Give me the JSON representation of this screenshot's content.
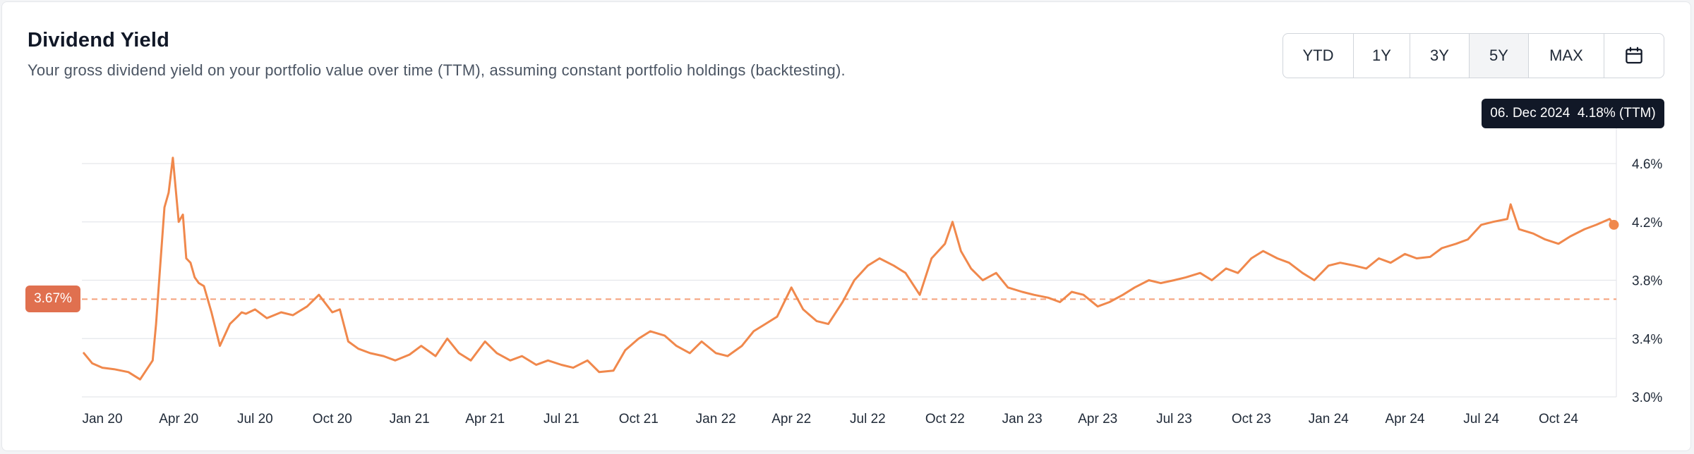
{
  "header": {
    "title": "Dividend Yield",
    "subtitle": "Your gross dividend yield on your portfolio value over time (TTM), assuming constant portfolio holdings (backtesting)."
  },
  "range_buttons": [
    {
      "label": "YTD",
      "active": false
    },
    {
      "label": "1Y",
      "active": false
    },
    {
      "label": "3Y",
      "active": false
    },
    {
      "label": "5Y",
      "active": true
    },
    {
      "label": "MAX",
      "active": false
    }
  ],
  "calendar_icon": "calendar-icon",
  "tooltip": {
    "date": "06. Dec 2024",
    "value": "4.18% (TTM)"
  },
  "average_badge": "3.67%",
  "colors": {
    "line": "#f0884c",
    "average_line": "#f5a07a",
    "badge": "#e0704f",
    "tooltip_bg": "#111827",
    "grid": "#e5e7eb"
  },
  "chart_data": {
    "type": "line",
    "title": "Dividend Yield",
    "xlabel": "",
    "ylabel": "",
    "ylim": [
      3.0,
      4.8
    ],
    "y_ticks": [
      "3.0%",
      "3.4%",
      "3.8%",
      "4.2%",
      "4.6%"
    ],
    "y_tick_values": [
      3.0,
      3.4,
      3.8,
      4.2,
      4.6
    ],
    "x_ticks": [
      "Jan 20",
      "Apr 20",
      "Jul 20",
      "Oct 20",
      "Jan 21",
      "Apr 21",
      "Jul 21",
      "Oct 21",
      "Jan 22",
      "Apr 22",
      "Jul 22",
      "Oct 22",
      "Jan 23",
      "Apr 23",
      "Jul 23",
      "Oct 23",
      "Jan 24",
      "Apr 24",
      "Jul 24",
      "Oct 24"
    ],
    "x_tick_dates": [
      "2020-01-01",
      "2020-04-01",
      "2020-07-01",
      "2020-10-01",
      "2021-01-01",
      "2021-04-01",
      "2021-07-01",
      "2021-10-01",
      "2022-01-01",
      "2022-04-01",
      "2022-07-01",
      "2022-10-01",
      "2023-01-01",
      "2023-04-01",
      "2023-07-01",
      "2023-10-01",
      "2024-01-01",
      "2024-04-01",
      "2024-07-01",
      "2024-10-01"
    ],
    "grid": true,
    "average": 3.67,
    "series": [
      {
        "name": "",
        "x": [
          "2019-12-10",
          "2019-12-20",
          "2020-01-01",
          "2020-01-15",
          "2020-02-01",
          "2020-02-15",
          "2020-03-01",
          "2020-03-05",
          "2020-03-10",
          "2020-03-15",
          "2020-03-20",
          "2020-03-25",
          "2020-04-01",
          "2020-04-06",
          "2020-04-10",
          "2020-04-15",
          "2020-04-20",
          "2020-04-25",
          "2020-05-01",
          "2020-05-10",
          "2020-05-20",
          "2020-06-01",
          "2020-06-10",
          "2020-06-15",
          "2020-06-20",
          "2020-07-01",
          "2020-07-15",
          "2020-08-01",
          "2020-08-15",
          "2020-09-01",
          "2020-09-15",
          "2020-10-01",
          "2020-10-10",
          "2020-10-20",
          "2020-11-01",
          "2020-11-15",
          "2020-12-01",
          "2020-12-15",
          "2021-01-01",
          "2021-01-15",
          "2021-02-01",
          "2021-02-15",
          "2021-03-01",
          "2021-03-15",
          "2021-04-01",
          "2021-04-15",
          "2021-05-01",
          "2021-05-15",
          "2021-06-01",
          "2021-06-15",
          "2021-07-01",
          "2021-07-15",
          "2021-08-01",
          "2021-08-15",
          "2021-09-01",
          "2021-09-15",
          "2021-10-01",
          "2021-10-15",
          "2021-11-01",
          "2021-11-15",
          "2021-12-01",
          "2021-12-15",
          "2022-01-01",
          "2022-01-15",
          "2022-02-01",
          "2022-02-15",
          "2022-03-01",
          "2022-03-15",
          "2022-04-01",
          "2022-04-15",
          "2022-05-01",
          "2022-05-15",
          "2022-06-01",
          "2022-06-15",
          "2022-07-01",
          "2022-07-15",
          "2022-08-01",
          "2022-08-15",
          "2022-09-01",
          "2022-09-15",
          "2022-10-01",
          "2022-10-10",
          "2022-10-20",
          "2022-11-01",
          "2022-11-15",
          "2022-12-01",
          "2022-12-15",
          "2023-01-01",
          "2023-01-15",
          "2023-02-01",
          "2023-02-15",
          "2023-03-01",
          "2023-03-15",
          "2023-04-01",
          "2023-04-15",
          "2023-05-01",
          "2023-05-15",
          "2023-06-01",
          "2023-06-15",
          "2023-07-01",
          "2023-07-15",
          "2023-08-01",
          "2023-08-15",
          "2023-09-01",
          "2023-09-15",
          "2023-10-01",
          "2023-10-15",
          "2023-11-01",
          "2023-11-15",
          "2023-12-01",
          "2023-12-15",
          "2024-01-01",
          "2024-01-15",
          "2024-02-01",
          "2024-02-15",
          "2024-03-01",
          "2024-03-15",
          "2024-04-01",
          "2024-04-15",
          "2024-05-01",
          "2024-05-15",
          "2024-06-01",
          "2024-06-15",
          "2024-07-01",
          "2024-07-15",
          "2024-08-01",
          "2024-08-05",
          "2024-08-15",
          "2024-09-01",
          "2024-09-15",
          "2024-10-01",
          "2024-10-15",
          "2024-11-01",
          "2024-11-15",
          "2024-12-01",
          "2024-12-06"
        ],
        "values": [
          3.3,
          3.23,
          3.2,
          3.19,
          3.17,
          3.12,
          3.25,
          3.5,
          3.9,
          4.3,
          4.4,
          4.64,
          4.2,
          4.25,
          3.95,
          3.92,
          3.82,
          3.78,
          3.76,
          3.58,
          3.35,
          3.5,
          3.55,
          3.58,
          3.57,
          3.6,
          3.54,
          3.58,
          3.56,
          3.62,
          3.7,
          3.58,
          3.6,
          3.38,
          3.33,
          3.3,
          3.28,
          3.25,
          3.29,
          3.35,
          3.28,
          3.4,
          3.3,
          3.25,
          3.38,
          3.3,
          3.25,
          3.28,
          3.22,
          3.25,
          3.22,
          3.2,
          3.25,
          3.17,
          3.18,
          3.32,
          3.4,
          3.45,
          3.42,
          3.35,
          3.3,
          3.38,
          3.3,
          3.28,
          3.35,
          3.45,
          3.5,
          3.55,
          3.75,
          3.6,
          3.52,
          3.5,
          3.65,
          3.8,
          3.9,
          3.95,
          3.9,
          3.85,
          3.7,
          3.95,
          4.05,
          4.2,
          4.0,
          3.88,
          3.8,
          3.85,
          3.75,
          3.72,
          3.7,
          3.68,
          3.65,
          3.72,
          3.7,
          3.62,
          3.65,
          3.7,
          3.75,
          3.8,
          3.78,
          3.8,
          3.82,
          3.85,
          3.8,
          3.88,
          3.85,
          3.95,
          4.0,
          3.95,
          3.92,
          3.85,
          3.8,
          3.9,
          3.92,
          3.9,
          3.88,
          3.95,
          3.92,
          3.98,
          3.95,
          3.96,
          4.02,
          4.05,
          4.08,
          4.18,
          4.2,
          4.22,
          4.32,
          4.15,
          4.12,
          4.08,
          4.05,
          4.1,
          4.15,
          4.18,
          4.22,
          4.18
        ]
      }
    ]
  }
}
